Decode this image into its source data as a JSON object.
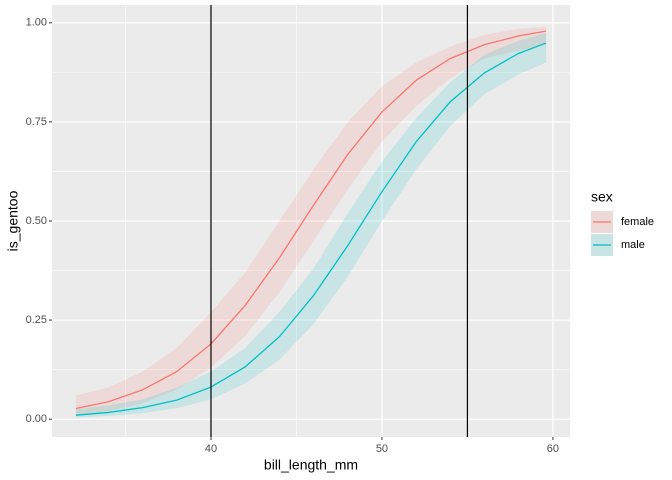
{
  "chart_data": {
    "type": "line",
    "xlabel": "bill_length_mm",
    "ylabel": "is_gentoo",
    "x": [
      32.1,
      34,
      36,
      38,
      40,
      42,
      44,
      46,
      48,
      50,
      52,
      54,
      56,
      58,
      59.6
    ],
    "series": [
      {
        "name": "female",
        "color": "#F8766D",
        "values": [
          0.027,
          0.044,
          0.074,
          0.12,
          0.19,
          0.287,
          0.407,
          0.54,
          0.668,
          0.775,
          0.855,
          0.91,
          0.945,
          0.967,
          0.979
        ],
        "lower": [
          0.01,
          0.02,
          0.04,
          0.075,
          0.13,
          0.21,
          0.32,
          0.45,
          0.58,
          0.7,
          0.79,
          0.86,
          0.91,
          0.93,
          0.945
        ],
        "upper": [
          0.06,
          0.08,
          0.12,
          0.18,
          0.27,
          0.37,
          0.5,
          0.63,
          0.75,
          0.84,
          0.9,
          0.94,
          0.97,
          0.985,
          0.99
        ]
      },
      {
        "name": "male",
        "color": "#00BFC4",
        "values": [
          0.01,
          0.017,
          0.029,
          0.048,
          0.081,
          0.132,
          0.208,
          0.312,
          0.438,
          0.574,
          0.7,
          0.801,
          0.874,
          0.923,
          0.949
        ],
        "lower": [
          0.004,
          0.008,
          0.015,
          0.028,
          0.05,
          0.09,
          0.15,
          0.24,
          0.36,
          0.5,
          0.63,
          0.74,
          0.82,
          0.87,
          0.9
        ],
        "upper": [
          0.025,
          0.035,
          0.05,
          0.08,
          0.12,
          0.18,
          0.27,
          0.38,
          0.52,
          0.65,
          0.76,
          0.85,
          0.92,
          0.955,
          0.975
        ]
      }
    ],
    "vlines": [
      40,
      55
    ],
    "legend_title": "sex",
    "legend": "right",
    "xlim": [
      30.7,
      61.0
    ],
    "ylim": [
      -0.045,
      1.045
    ],
    "xticks": [
      40,
      50,
      60
    ],
    "xminor": [
      35,
      45,
      55
    ],
    "yticks": [
      {
        "value": 0,
        "label": "0.00"
      },
      {
        "value": 0.25,
        "label": "0.25"
      },
      {
        "value": 0.5,
        "label": "0.50"
      },
      {
        "value": 0.75,
        "label": "0.75"
      },
      {
        "value": 1,
        "label": "1.00"
      }
    ],
    "yminor": [
      0.125,
      0.375,
      0.625,
      0.875
    ],
    "grid": true
  }
}
